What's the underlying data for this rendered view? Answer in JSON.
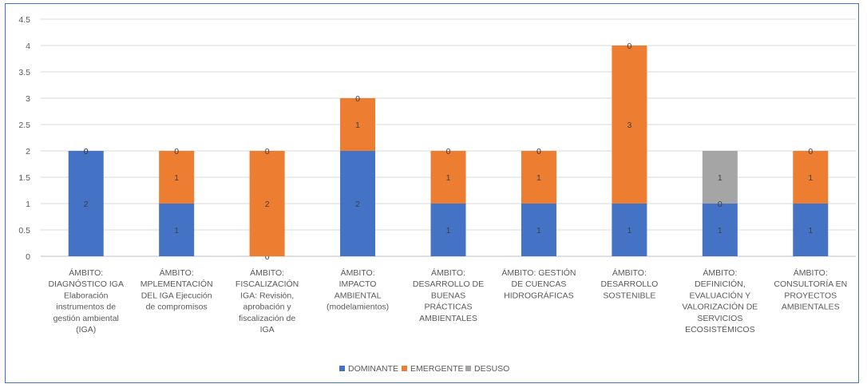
{
  "chart_data": {
    "type": "bar",
    "stacked": true,
    "title": "",
    "xlabel": "",
    "ylabel": "",
    "ylim": [
      0,
      4.5
    ],
    "yticks": [
      "0",
      "0.5",
      "1",
      "1.5",
      "2",
      "2.5",
      "3",
      "3.5",
      "4",
      "4.5"
    ],
    "grid": true,
    "legend_position": "bottom",
    "categories": [
      [
        "ÁMBITO:",
        "DIAGNÓSTICO IGA",
        "Elaboración",
        "instrumentos de",
        "gestión ambiental",
        "(IGA)"
      ],
      [
        "ÁMBITO:",
        "MPLEMENTACIÓN",
        "DEL IGA Ejecución",
        "de compromisos"
      ],
      [
        "ÁMBITO:",
        "FISCALIZACIÓN",
        "IGA: Revisión,",
        "aprobación y",
        "fiscalización de",
        "IGA"
      ],
      [
        "ÁMBITO:",
        "IMPACTO",
        "AMBIENTAL",
        "(modelamientos)"
      ],
      [
        "ÁMBITO:",
        "DESARROLLO DE",
        "BUENAS",
        "PRÁCTICAS",
        "AMBIENTALES"
      ],
      [
        "ÁMBITO: GESTIÓN",
        "DE CUENCAS",
        "HIDROGRÁFICAS"
      ],
      [
        "ÁMBITO:",
        "DESARROLLO",
        "SOSTENIBLE"
      ],
      [
        "ÁMBITO:",
        "DEFINICIÓN,",
        "EVALUACIÓN Y",
        "VALORIZACIÓN DE",
        "SERVICIOS",
        "ECOSISTÉMICOS"
      ],
      [
        "ÁMBITO:",
        "CONSULTORÍA EN",
        "PROYECTOS",
        "AMBIENTALES"
      ]
    ],
    "series": [
      {
        "name": "DOMINANTE",
        "color": "#4472c4",
        "values": [
          2,
          1,
          0,
          2,
          1,
          1,
          1,
          1,
          1
        ]
      },
      {
        "name": "EMERGENTE",
        "color": "#ed7d31",
        "values": [
          0,
          1,
          2,
          1,
          1,
          1,
          3,
          0,
          1
        ]
      },
      {
        "name": "DESUSO",
        "color": "#a5a5a5",
        "values": [
          0,
          0,
          0,
          0,
          0,
          0,
          0,
          1,
          0
        ]
      }
    ],
    "data_labels": [
      [
        "2",
        "1",
        "0",
        "2",
        "1",
        "1",
        "1",
        "1",
        "1"
      ],
      [
        "0",
        "1",
        "2",
        "1",
        "1",
        "1",
        "3",
        "0",
        "1"
      ],
      [
        "0",
        "0",
        "0",
        "0",
        "0",
        "0",
        "0",
        "1",
        "0"
      ]
    ]
  }
}
